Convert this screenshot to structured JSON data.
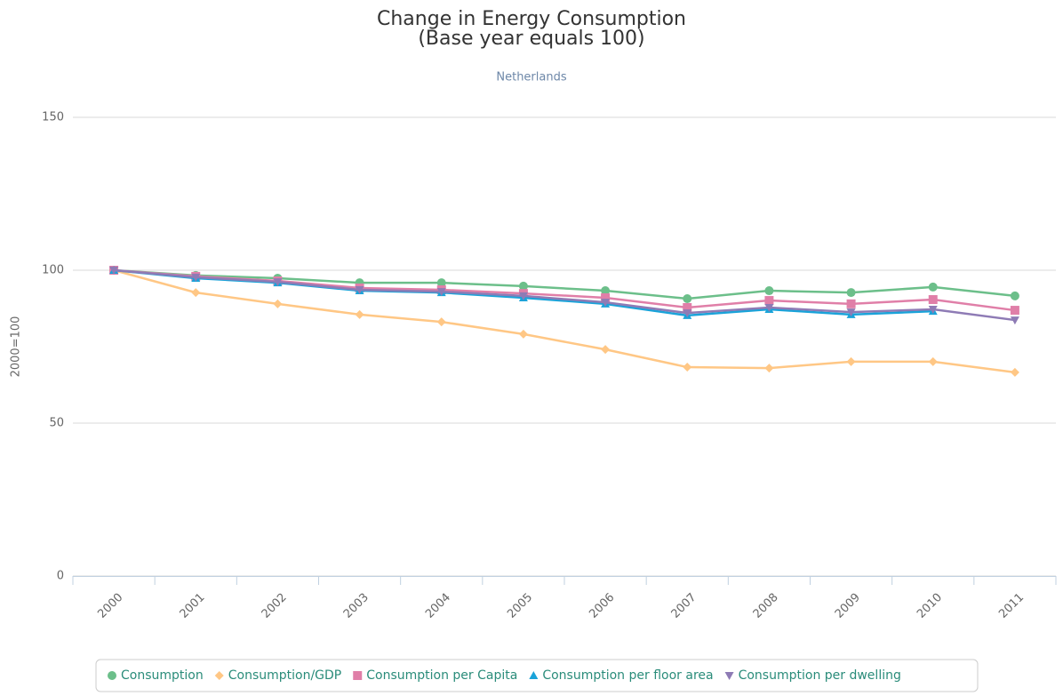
{
  "chart_data": {
    "type": "line",
    "title": "Change in Energy Consumption",
    "title_line2": "(Base year equals 100)",
    "subtitle": "Netherlands",
    "y_label": "2000=100",
    "categories": [
      "2000",
      "2001",
      "2002",
      "2003",
      "2004",
      "2005",
      "2006",
      "2007",
      "2008",
      "2009",
      "2010",
      "2011"
    ],
    "series": [
      {
        "name": "Consumption",
        "color": "#6cbf8a",
        "marker": "circle",
        "values": [
          100,
          98.3,
          97.4,
          95.9,
          95.9,
          94.8,
          93.3,
          90.7,
          93.3,
          92.7,
          94.5,
          91.6
        ]
      },
      {
        "name": "Consumption/GDP",
        "color": "#ffc785",
        "marker": "diamond",
        "values": [
          100,
          92.7,
          89.0,
          85.5,
          83.1,
          79.1,
          74.1,
          68.3,
          68.0,
          70.1,
          70.1,
          66.6
        ]
      },
      {
        "name": "Consumption per Capita",
        "color": "#e07fa8",
        "marker": "square",
        "values": [
          100,
          98.0,
          96.5,
          94.2,
          93.6,
          92.4,
          91.0,
          87.8,
          90.1,
          89.0,
          90.4,
          86.9
        ]
      },
      {
        "name": "Consumption per floor area",
        "color": "#1aa3d9",
        "marker": "triangle",
        "values": [
          100,
          97.4,
          95.9,
          93.3,
          92.7,
          91.0,
          89.0,
          85.2,
          87.2,
          85.5,
          86.6,
          null
        ]
      },
      {
        "name": "Consumption per dwelling",
        "color": "#8e7bb5",
        "marker": "triangle-down",
        "values": [
          100,
          97.7,
          96.2,
          93.6,
          93.0,
          91.6,
          89.5,
          86.0,
          87.8,
          86.3,
          87.2,
          83.7
        ]
      }
    ],
    "ylim": [
      0,
      150
    ],
    "yticks": [
      0,
      50,
      100,
      150
    ],
    "grid": true,
    "legend": "bottom"
  }
}
